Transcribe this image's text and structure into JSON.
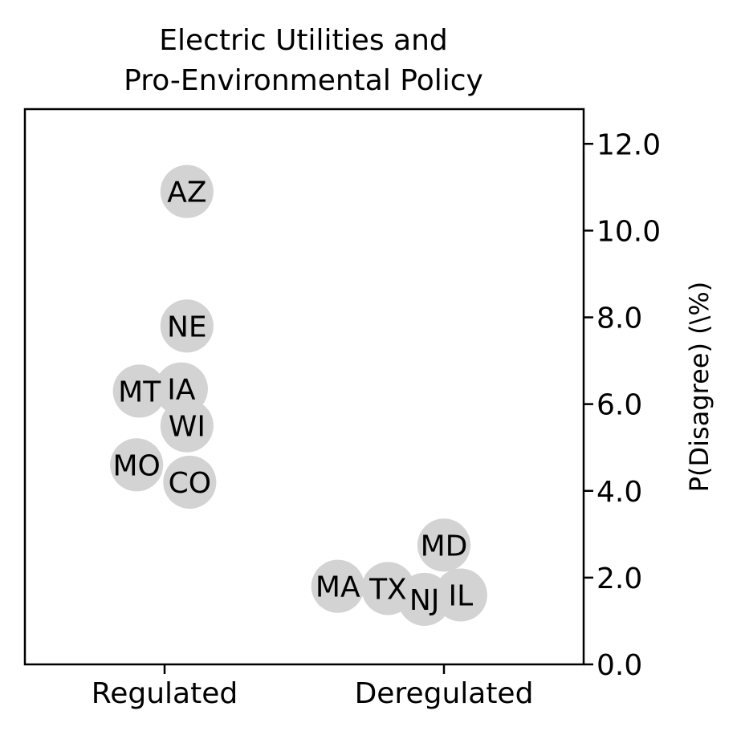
{
  "chart_data": {
    "type": "scatter",
    "title_lines": [
      "Electric Utilities and",
      "Pro-Environmental Policy"
    ],
    "xlabel": "",
    "ylabel": "P(Disagree) (\\%)",
    "categories": [
      "Regulated",
      "Deregulated"
    ],
    "ylim": [
      0.0,
      12.8
    ],
    "yticks": [
      0.0,
      2.0,
      4.0,
      6.0,
      8.0,
      10.0,
      12.0
    ],
    "ytick_labels": [
      "0.0",
      "2.0",
      "4.0",
      "6.0",
      "8.0",
      "10.0",
      "12.0"
    ],
    "y_axis_side": "right",
    "grid": false,
    "marker_color": "#d3d3d3",
    "points": [
      {
        "label": "AZ",
        "group": "Regulated",
        "jitter": 0.08,
        "y": 10.9
      },
      {
        "label": "NE",
        "group": "Regulated",
        "jitter": 0.08,
        "y": 7.8
      },
      {
        "label": "MT",
        "group": "Regulated",
        "jitter": -0.09,
        "y": 6.3
      },
      {
        "label": "IA",
        "group": "Regulated",
        "jitter": 0.06,
        "y": 6.35
      },
      {
        "label": "WI",
        "group": "Regulated",
        "jitter": 0.08,
        "y": 5.5
      },
      {
        "label": "MO",
        "group": "Regulated",
        "jitter": -0.1,
        "y": 4.6
      },
      {
        "label": "CO",
        "group": "Regulated",
        "jitter": 0.09,
        "y": 4.2
      },
      {
        "label": "MD",
        "group": "Deregulated",
        "jitter": 0.0,
        "y": 2.75
      },
      {
        "label": "MA",
        "group": "Deregulated",
        "jitter": -0.38,
        "y": 1.8
      },
      {
        "label": "TX",
        "group": "Deregulated",
        "jitter": -0.2,
        "y": 1.75
      },
      {
        "label": "NJ",
        "group": "Deregulated",
        "jitter": -0.07,
        "y": 1.5
      },
      {
        "label": "IL",
        "group": "Deregulated",
        "jitter": 0.06,
        "y": 1.6
      }
    ]
  }
}
